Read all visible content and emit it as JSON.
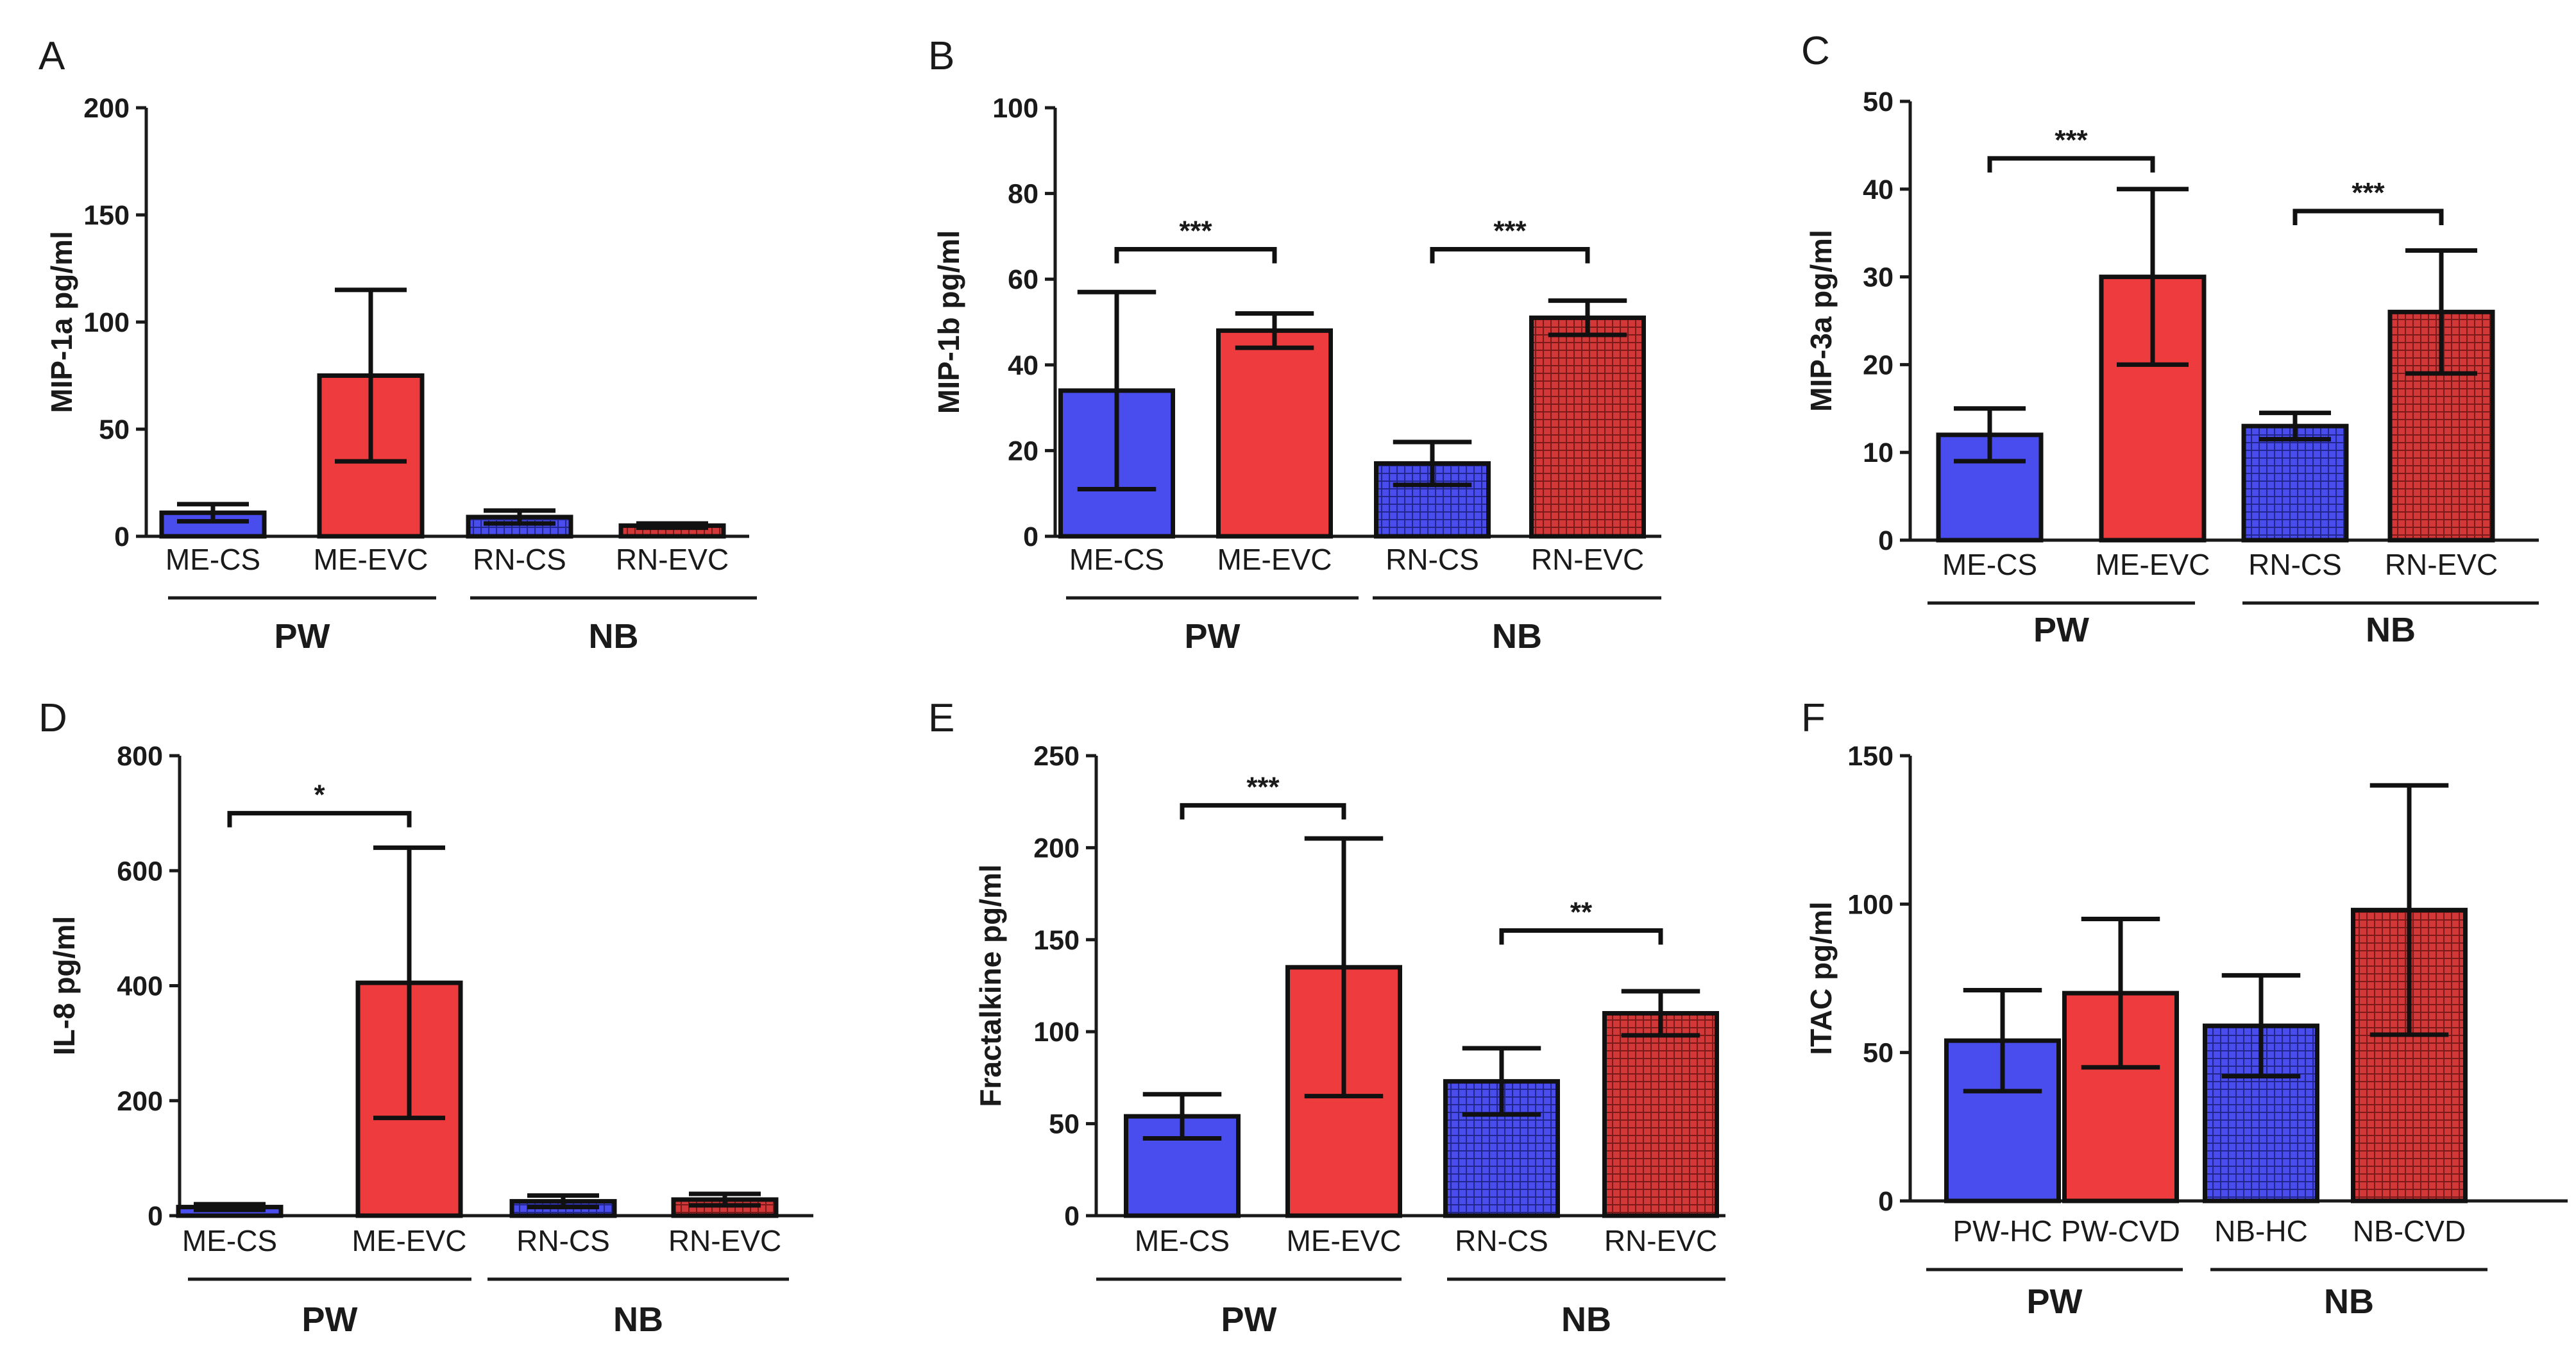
{
  "colors": {
    "blue": "#4a4dee",
    "red": "#ee3c3e",
    "blue_hatched": "#3a3fb0",
    "red_hatched": "#b82f2f"
  },
  "chart_data": [
    {
      "panel": "A",
      "type": "bar",
      "ylabel": "MIP-1a pg/ml",
      "ylim": [
        0,
        200
      ],
      "yticks": [
        0,
        50,
        100,
        150,
        200
      ],
      "categories": [
        "ME-CS",
        "ME-EVC",
        "RN-CS",
        "RN-EVC"
      ],
      "values": [
        11,
        75,
        9,
        5
      ],
      "errors": [
        4,
        40,
        3,
        1
      ],
      "groups": [
        "PW",
        "NB"
      ],
      "significance": []
    },
    {
      "panel": "B",
      "type": "bar",
      "ylabel": "MIP-1b pg/ml",
      "ylim": [
        0,
        100
      ],
      "yticks": [
        0,
        20,
        40,
        60,
        80,
        100
      ],
      "categories": [
        "ME-CS",
        "ME-EVC",
        "RN-CS",
        "RN-EVC"
      ],
      "values": [
        34,
        48,
        17,
        51
      ],
      "errors": [
        23,
        4,
        5,
        4
      ],
      "groups": [
        "PW",
        "NB"
      ],
      "significance": [
        {
          "from": 0,
          "to": 1,
          "label": "***",
          "y": 67
        },
        {
          "from": 2,
          "to": 3,
          "label": "***",
          "y": 67
        }
      ]
    },
    {
      "panel": "C",
      "type": "bar",
      "ylabel": "MIP-3a pg/ml",
      "ylim": [
        0,
        50
      ],
      "yticks": [
        0,
        10,
        20,
        30,
        40,
        50
      ],
      "categories": [
        "ME-CS",
        "ME-EVC",
        "RN-CS",
        "RN-EVC"
      ],
      "values": [
        12,
        30,
        13,
        26
      ],
      "errors": [
        3,
        10,
        1.5,
        7
      ],
      "groups": [
        "PW",
        "NB"
      ],
      "significance": [
        {
          "from": 0,
          "to": 1,
          "label": "***",
          "y": 43.5
        },
        {
          "from": 2,
          "to": 3,
          "label": "***",
          "y": 37.5
        }
      ]
    },
    {
      "panel": "D",
      "type": "bar",
      "ylabel": "IL-8 pg/ml",
      "ylim": [
        0,
        800
      ],
      "yticks": [
        0,
        200,
        400,
        600,
        800
      ],
      "categories": [
        "ME-CS",
        "ME-EVC",
        "RN-CS",
        "RN-EVC"
      ],
      "values": [
        15,
        405,
        25,
        28
      ],
      "errors": [
        5,
        235,
        10,
        10
      ],
      "groups": [
        "PW",
        "NB"
      ],
      "significance": [
        {
          "from": 0,
          "to": 1,
          "label": "*",
          "y": 700
        }
      ]
    },
    {
      "panel": "E",
      "type": "bar",
      "ylabel": "Fractalkine pg/ml",
      "ylim": [
        0,
        250
      ],
      "yticks": [
        0,
        50,
        100,
        150,
        200,
        250
      ],
      "categories": [
        "ME-CS",
        "ME-EVC",
        "RN-CS",
        "RN-EVC"
      ],
      "values": [
        54,
        135,
        73,
        110
      ],
      "errors": [
        12,
        70,
        18,
        12
      ],
      "groups": [
        "PW",
        "NB"
      ],
      "significance": [
        {
          "from": 0,
          "to": 1,
          "label": "***",
          "y": 223
        },
        {
          "from": 2,
          "to": 3,
          "label": "**",
          "y": 155
        }
      ]
    },
    {
      "panel": "F",
      "type": "bar",
      "ylabel": "ITAC pg/ml",
      "ylim": [
        0,
        150
      ],
      "yticks": [
        0,
        50,
        100,
        150
      ],
      "categories": [
        "PW-HC",
        "PW-CVD",
        "NB-HC",
        "NB-CVD"
      ],
      "values": [
        54,
        70,
        59,
        98
      ],
      "errors": [
        17,
        25,
        17,
        42
      ],
      "groups": [
        "PW",
        "NB"
      ],
      "significance": []
    }
  ]
}
